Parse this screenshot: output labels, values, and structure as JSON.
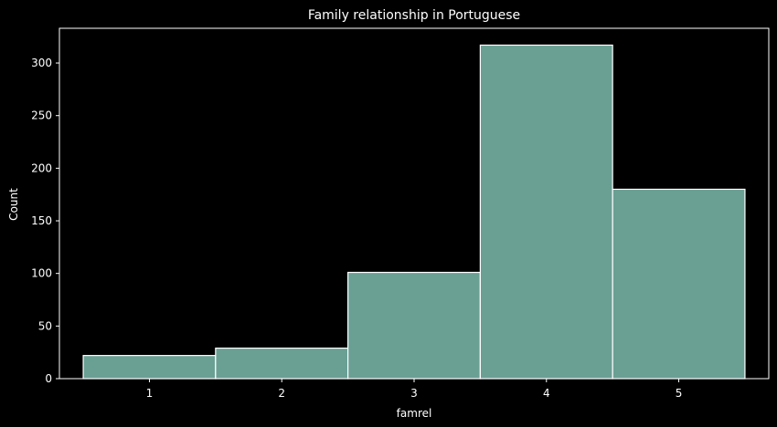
{
  "chart_data": {
    "type": "bar",
    "title": "Family relationship in Portuguese",
    "xlabel": "famrel",
    "ylabel": "Count",
    "categories": [
      "1",
      "2",
      "3",
      "4",
      "5"
    ],
    "values": [
      22,
      29,
      101,
      317,
      180
    ],
    "ylim": [
      0,
      333
    ],
    "yticks": [
      0,
      50,
      100,
      150,
      200,
      250,
      300
    ],
    "grid": false,
    "colors": {
      "bar_fill": "#6a9f94",
      "bar_edge": "#ffffff",
      "background": "#000000",
      "axes": "#ffffff",
      "text": "#ffffff"
    }
  }
}
